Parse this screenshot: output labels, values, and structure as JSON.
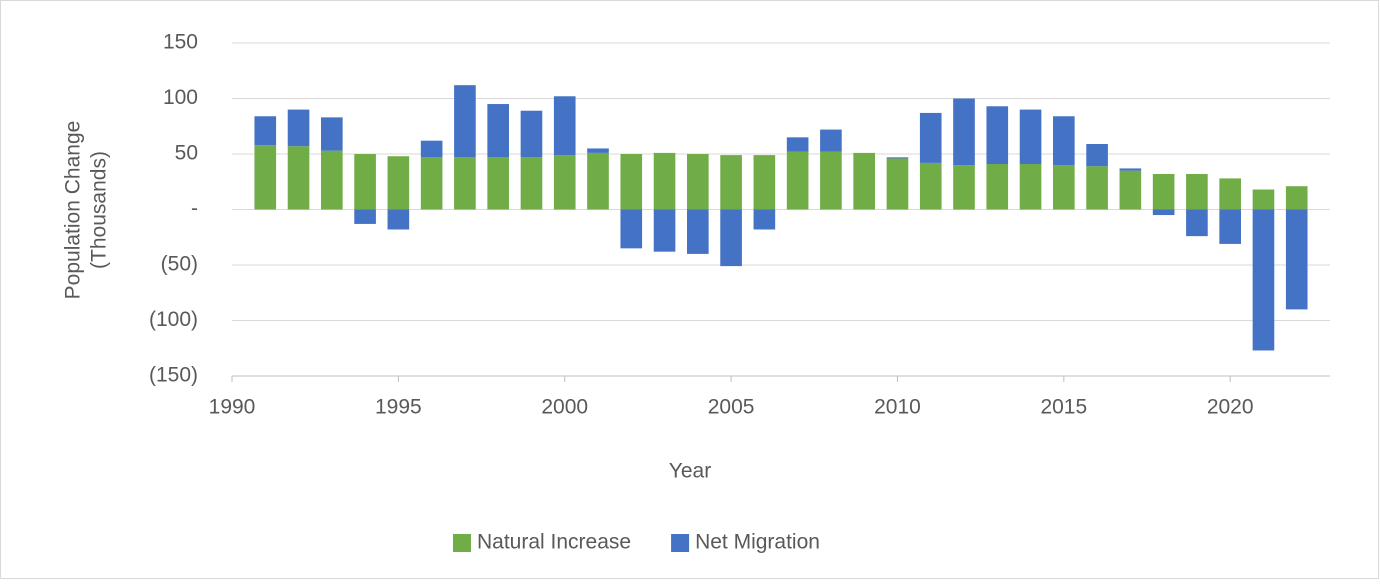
{
  "chart_data": {
    "type": "bar",
    "stacked": true,
    "xlabel": "Year",
    "ylabel": [
      "Population Change",
      "(Thousands)"
    ],
    "x": [
      1991,
      1992,
      1993,
      1994,
      1995,
      1996,
      1997,
      1998,
      1999,
      2000,
      2001,
      2002,
      2003,
      2004,
      2005,
      2006,
      2007,
      2008,
      2009,
      2010,
      2011,
      2012,
      2013,
      2014,
      2015,
      2016,
      2017,
      2018,
      2019,
      2020,
      2021,
      2022
    ],
    "series": [
      {
        "name": "Natural Increase",
        "color": "#70ad47",
        "values": [
          58,
          57,
          53,
          50,
          48,
          47,
          47,
          47,
          47,
          49,
          51,
          50,
          51,
          50,
          49,
          49,
          52,
          52,
          51,
          46,
          42,
          40,
          41,
          41,
          40,
          39,
          35,
          32,
          32,
          28,
          18,
          21
        ]
      },
      {
        "name": "Net Migration",
        "color": "#4472c4",
        "values": [
          26,
          33,
          30,
          -13,
          -18,
          15,
          65,
          48,
          42,
          53,
          4,
          -35,
          -38,
          -40,
          -51,
          -18,
          13,
          20,
          0,
          1,
          45,
          60,
          52,
          49,
          44,
          20,
          2,
          -5,
          -24,
          -31,
          -127,
          -90
        ]
      }
    ],
    "xlim": [
      1990,
      2023
    ],
    "xticks": [
      1990,
      1995,
      2000,
      2005,
      2010,
      2015,
      2020
    ],
    "ylim": [
      -150,
      150
    ],
    "yticks": [
      {
        "value": -150,
        "label": "(150)"
      },
      {
        "value": -100,
        "label": "(100)"
      },
      {
        "value": -50,
        "label": "(50)"
      },
      {
        "value": 0,
        "label": "-"
      },
      50,
      100,
      150
    ],
    "grid": true,
    "legend": "bottom"
  }
}
